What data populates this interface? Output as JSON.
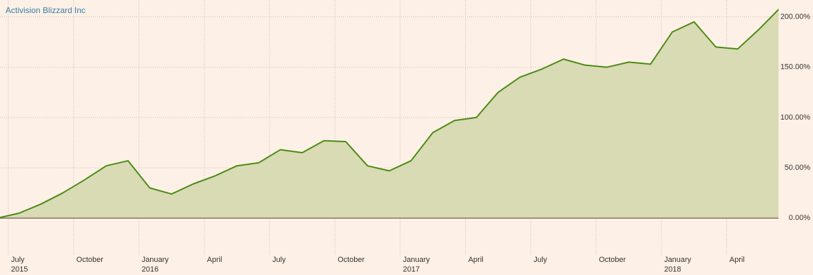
{
  "chart_data": {
    "type": "area",
    "title": "Activision Blizzard Inc",
    "x": [
      "2015-06",
      "2015-07",
      "2015-08",
      "2015-09",
      "2015-10",
      "2015-11",
      "2015-12",
      "2016-01",
      "2016-02",
      "2016-03",
      "2016-04",
      "2016-05",
      "2016-06",
      "2016-07",
      "2016-08",
      "2016-09",
      "2016-10",
      "2016-11",
      "2016-12",
      "2017-01",
      "2017-02",
      "2017-03",
      "2017-04",
      "2017-05",
      "2017-06",
      "2017-07",
      "2017-08",
      "2017-09",
      "2017-10",
      "2017-11",
      "2017-12",
      "2018-01",
      "2018-02",
      "2018-03",
      "2018-04",
      "2018-05",
      "2018-06"
    ],
    "values": [
      0,
      5,
      14,
      25,
      38,
      52,
      57,
      30,
      24,
      34,
      42,
      52,
      55,
      68,
      65,
      77,
      76,
      52,
      47,
      57,
      85,
      97,
      100,
      125,
      140,
      148,
      158,
      152,
      150,
      155,
      153,
      185,
      195,
      170,
      168,
      188,
      210
    ],
    "color": "#4a8a14",
    "fill": "#d8dbb4",
    "ylim": [
      -36,
      214
    ],
    "yticks": [
      {
        "value": 0,
        "label": "0.00%"
      },
      {
        "value": 50,
        "label": "50.00%"
      },
      {
        "value": 100,
        "label": "100.00%"
      },
      {
        "value": 150,
        "label": "150.00%"
      },
      {
        "value": 200,
        "label": "200.00%"
      }
    ],
    "xticks": [
      {
        "value": "2015-07",
        "label": "July"
      },
      {
        "value": "2015-10",
        "label": "October"
      },
      {
        "value": "2016-01",
        "label": "January"
      },
      {
        "value": "2016-04",
        "label": "April"
      },
      {
        "value": "2016-07",
        "label": "July"
      },
      {
        "value": "2016-10",
        "label": "October"
      },
      {
        "value": "2017-01",
        "label": "January"
      },
      {
        "value": "2017-04",
        "label": "April"
      },
      {
        "value": "2017-07",
        "label": "July"
      },
      {
        "value": "2017-10",
        "label": "October"
      },
      {
        "value": "2018-01",
        "label": "January"
      },
      {
        "value": "2018-04",
        "label": "April"
      }
    ],
    "year_labels": [
      {
        "value": "2015-07",
        "label": "2015"
      },
      {
        "value": "2016-01",
        "label": "2016"
      },
      {
        "value": "2017-01",
        "label": "2017"
      },
      {
        "value": "2018-01",
        "label": "2018"
      }
    ],
    "grid": true
  }
}
